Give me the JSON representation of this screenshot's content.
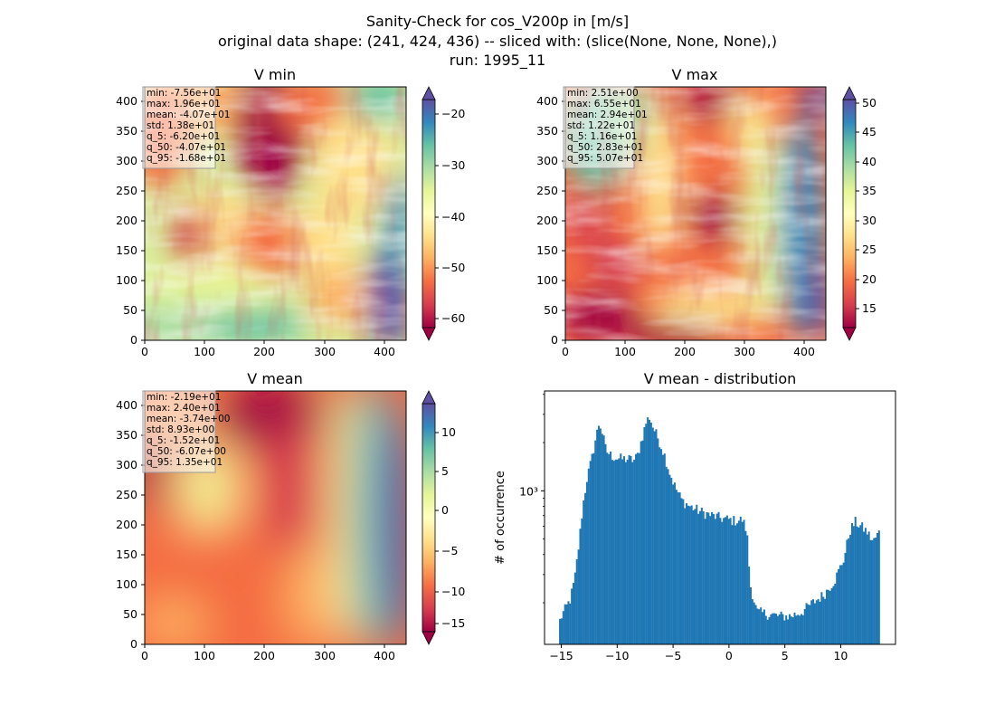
{
  "figure": {
    "title_lines": [
      "Sanity-Check for cos_V200p in [m/s]",
      "original data shape: (241, 424, 436) -- sliced with: (slice(None, None, None),)",
      "run: 1995_11"
    ]
  },
  "chart_data": [
    {
      "type": "heatmap",
      "title": "V min",
      "colormap": "Spectral",
      "xlim": [
        0,
        436
      ],
      "ylim": [
        0,
        424
      ],
      "xticks": [
        0,
        100,
        200,
        300,
        400
      ],
      "yticks": [
        0,
        50,
        100,
        150,
        200,
        250,
        300,
        350,
        400
      ],
      "colorbar": {
        "range": [
          -64,
          -14.5
        ],
        "ticks": [
          -60,
          -50,
          -40,
          -30,
          -20
        ],
        "extend": "both"
      },
      "stats": [
        "min: -7.56e+01",
        "max: 1.96e+01",
        "mean: -4.07e+01",
        "std: 1.38e+01",
        "q_5: -6.20e+01",
        "q_50: -4.07e+01",
        "q_95: -1.68e+01"
      ]
    },
    {
      "type": "heatmap",
      "title": "V max",
      "colormap": "Spectral",
      "xlim": [
        0,
        436
      ],
      "ylim": [
        0,
        424
      ],
      "xticks": [
        0,
        100,
        200,
        300,
        400
      ],
      "yticks": [
        0,
        50,
        100,
        150,
        200,
        250,
        300,
        350,
        400
      ],
      "colorbar": {
        "range": [
          10.5,
          52
        ],
        "ticks": [
          15,
          20,
          25,
          30,
          35,
          40,
          45,
          50
        ],
        "extend": "both"
      },
      "stats": [
        "min: 2.51e+00",
        "max: 6.55e+01",
        "mean: 2.94e+01",
        "std: 1.22e+01",
        "q_5: 1.16e+01",
        "q_50: 2.83e+01",
        "q_95: 5.07e+01"
      ]
    },
    {
      "type": "heatmap",
      "title": "V mean",
      "colormap": "Spectral",
      "xlim": [
        0,
        436
      ],
      "ylim": [
        0,
        424
      ],
      "xticks": [
        0,
        100,
        200,
        300,
        400
      ],
      "yticks": [
        0,
        50,
        100,
        150,
        200,
        250,
        300,
        350,
        400
      ],
      "colorbar": {
        "range": [
          -16,
          13.5
        ],
        "ticks": [
          -15,
          -10,
          -5,
          0,
          5,
          10
        ],
        "extend": "both"
      },
      "stats": [
        "min: -2.19e+01",
        "max: 2.40e+01",
        "mean: -3.74e+00",
        "std: 8.93e+00",
        "q_5: -1.52e+01",
        "q_50: -6.07e+00",
        "q_95: 1.35e+01"
      ]
    },
    {
      "type": "bar",
      "title": "V mean - distribution",
      "ylabel": "# of occurrence",
      "yscale": "log",
      "xlim": [
        -16.5,
        14.9
      ],
      "ylim": [
        110,
        4200
      ],
      "xticks": [
        -15,
        -10,
        -5,
        0,
        5,
        10
      ],
      "ytick_label": "10³",
      "ytick_value": 1000,
      "minor_yticks": [
        200,
        300,
        400,
        500,
        600,
        700,
        800,
        900,
        2000,
        3000,
        4000
      ],
      "color": "#1f77b4",
      "bin_range": [
        -15.2,
        13.5
      ],
      "bin_count": 190,
      "profile": [
        [
          -15.2,
          150
        ],
        [
          -14.9,
          170
        ],
        [
          -14.6,
          185
        ],
        [
          -14.2,
          210
        ],
        [
          -13.8,
          280
        ],
        [
          -13.4,
          480
        ],
        [
          -13.1,
          780
        ],
        [
          -12.7,
          1200
        ],
        [
          -12.3,
          1550
        ],
        [
          -12.0,
          2000
        ],
        [
          -11.6,
          2700
        ],
        [
          -11.3,
          2250
        ],
        [
          -11.0,
          1780
        ],
        [
          -10.5,
          1650
        ],
        [
          -10.0,
          1600
        ],
        [
          -9.5,
          1580
        ],
        [
          -9.0,
          1580
        ],
        [
          -8.5,
          1550
        ],
        [
          -8.2,
          1650
        ],
        [
          -7.8,
          2100
        ],
        [
          -7.4,
          2700
        ],
        [
          -7.1,
          2900
        ],
        [
          -6.8,
          2500
        ],
        [
          -6.3,
          2100
        ],
        [
          -5.8,
          1700
        ],
        [
          -5.3,
          1300
        ],
        [
          -4.8,
          1050
        ],
        [
          -4.2,
          870
        ],
        [
          -3.5,
          800
        ],
        [
          -2.5,
          740
        ],
        [
          -1.5,
          700
        ],
        [
          -0.5,
          670
        ],
        [
          0.5,
          650
        ],
        [
          1.2,
          660
        ],
        [
          1.6,
          560
        ],
        [
          1.9,
          260
        ],
        [
          2.5,
          175
        ],
        [
          3.5,
          170
        ],
        [
          4.5,
          165
        ],
        [
          5.5,
          165
        ],
        [
          6.5,
          175
        ],
        [
          7.5,
          200
        ],
        [
          8.5,
          225
        ],
        [
          9.5,
          280
        ],
        [
          10.3,
          380
        ],
        [
          10.8,
          560
        ],
        [
          11.3,
          640
        ],
        [
          11.8,
          600
        ],
        [
          12.3,
          560
        ],
        [
          12.9,
          480
        ],
        [
          13.5,
          560
        ]
      ]
    }
  ]
}
